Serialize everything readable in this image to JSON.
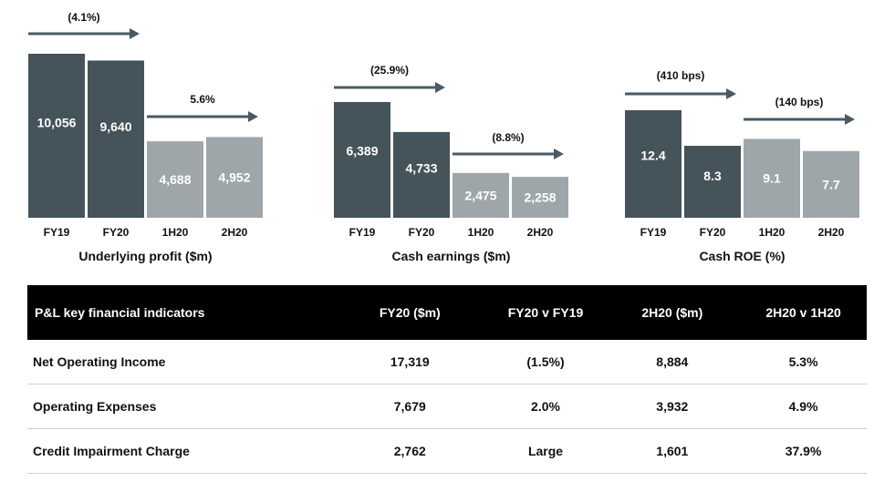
{
  "chart_data": [
    {
      "type": "bar",
      "title": "Underlying profit ($m)",
      "categories": [
        "FY19",
        "FY20",
        "1H20",
        "2H20"
      ],
      "values": [
        10056,
        9640,
        4688,
        4952
      ],
      "value_labels": [
        "10,056",
        "9,640",
        "4,688",
        "4,952"
      ],
      "ylim": [
        0,
        10056
      ],
      "annotations": [
        {
          "label": "(4.1%)",
          "from": "FY19",
          "to": "FY20"
        },
        {
          "label": "5.6%",
          "from": "1H20",
          "to": "2H20"
        }
      ]
    },
    {
      "type": "bar",
      "title": "Cash earnings ($m)",
      "categories": [
        "FY19",
        "FY20",
        "1H20",
        "2H20"
      ],
      "values": [
        6389,
        4733,
        2475,
        2258
      ],
      "value_labels": [
        "6,389",
        "4,733",
        "2,475",
        "2,258"
      ],
      "ylim": [
        0,
        6389
      ],
      "annotations": [
        {
          "label": "(25.9%)",
          "from": "FY19",
          "to": "FY20"
        },
        {
          "label": "(8.8%)",
          "from": "1H20",
          "to": "2H20"
        }
      ]
    },
    {
      "type": "bar",
      "title": "Cash ROE (%)",
      "categories": [
        "FY19",
        "FY20",
        "1H20",
        "2H20"
      ],
      "values": [
        12.4,
        8.3,
        9.1,
        7.7
      ],
      "value_labels": [
        "12.4",
        "8.3",
        "9.1",
        "7.7"
      ],
      "ylim": [
        0,
        12.4
      ],
      "annotations": [
        {
          "label": "(410 bps)",
          "from": "FY19",
          "to": "FY20"
        },
        {
          "label": "(140 bps)",
          "from": "1H20",
          "to": "2H20"
        }
      ]
    }
  ],
  "colors": {
    "full_year": "#45535a",
    "half_year": "#9fa6aa",
    "arrow": "#4a5a62",
    "table_header_bg": "#000000"
  },
  "table": {
    "columns": [
      "P&L key financial indicators",
      "FY20 ($m)",
      "FY20 v FY19",
      "2H20  ($m)",
      "2H20 v 1H20"
    ],
    "rows": [
      [
        "Net Operating Income",
        "17,319",
        "(1.5%)",
        "8,884",
        "5.3%"
      ],
      [
        "Operating Expenses",
        "7,679",
        "2.0%",
        "3,932",
        "4.9%"
      ],
      [
        "Credit Impairment Charge",
        "2,762",
        "Large",
        "1,601",
        "37.9%"
      ]
    ]
  }
}
